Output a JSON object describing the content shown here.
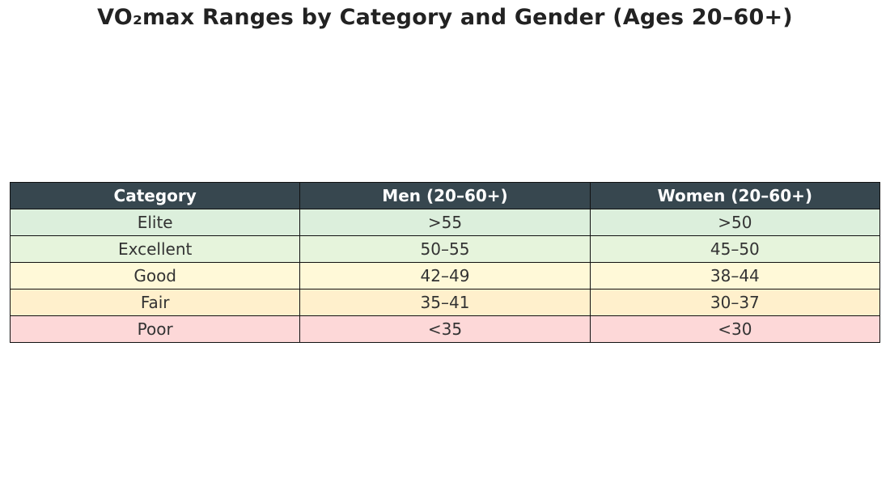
{
  "chart_data": {
    "type": "table",
    "title": "VO₂max Ranges by Category and Gender (Ages 20–60+)",
    "columns": [
      "Category",
      "Men (20–60+)",
      "Women (20–60+)"
    ],
    "header_color": "#37474f",
    "rows": [
      {
        "category": "Elite",
        "men": ">55",
        "women": ">50",
        "color": "#dcefdc"
      },
      {
        "category": "Excellent",
        "men": "50–55",
        "women": "45–50",
        "color": "#e6f4dc"
      },
      {
        "category": "Good",
        "men": "42–49",
        "women": "38–44",
        "color": "#fff9d8"
      },
      {
        "category": "Fair",
        "men": "35–41",
        "women": "30–37",
        "color": "#fff0cc"
      },
      {
        "category": "Poor",
        "men": "<35",
        "women": "<30",
        "color": "#fdd8d8"
      }
    ]
  }
}
